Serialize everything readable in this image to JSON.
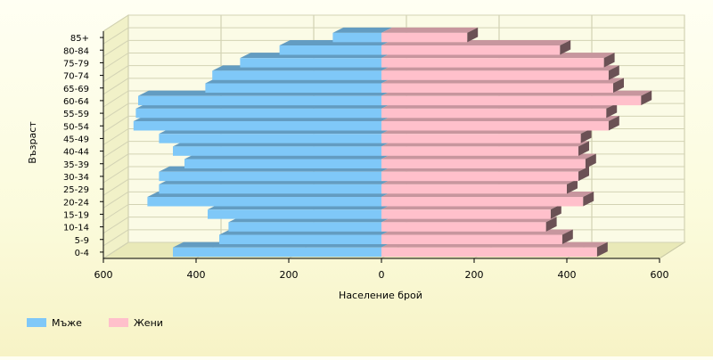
{
  "chart_data": {
    "type": "bar",
    "orientation": "horizontal",
    "style": "population pyramid, 3D bars",
    "xlabel": "Население брой",
    "ylabel": "Възраст",
    "xlim": [
      -600,
      600
    ],
    "x_ticks": [
      -600,
      -400,
      -200,
      0,
      200,
      400,
      600
    ],
    "x_tick_labels": [
      "600",
      "400",
      "200",
      "0",
      "200",
      "400",
      "600"
    ],
    "grid": true,
    "legend_position": "bottom-left",
    "categories": [
      "0-4",
      "5-9",
      "10-14",
      "15-19",
      "20-24",
      "25-29",
      "30-34",
      "35-39",
      "40-44",
      "45-49",
      "50-54",
      "55-59",
      "60-64",
      "65-69",
      "70-74",
      "75-79",
      "80-84",
      "85+"
    ],
    "series": [
      {
        "name": "Мъже",
        "color": "#7fc8f8",
        "values": [
          450,
          350,
          330,
          375,
          505,
          480,
          480,
          425,
          450,
          480,
          535,
          530,
          525,
          380,
          365,
          305,
          220,
          105
        ]
      },
      {
        "name": "Жени",
        "color": "#ffc0cb",
        "values": [
          465,
          390,
          355,
          365,
          435,
          400,
          425,
          440,
          425,
          430,
          490,
          485,
          560,
          500,
          490,
          480,
          385,
          185
        ]
      }
    ]
  }
}
